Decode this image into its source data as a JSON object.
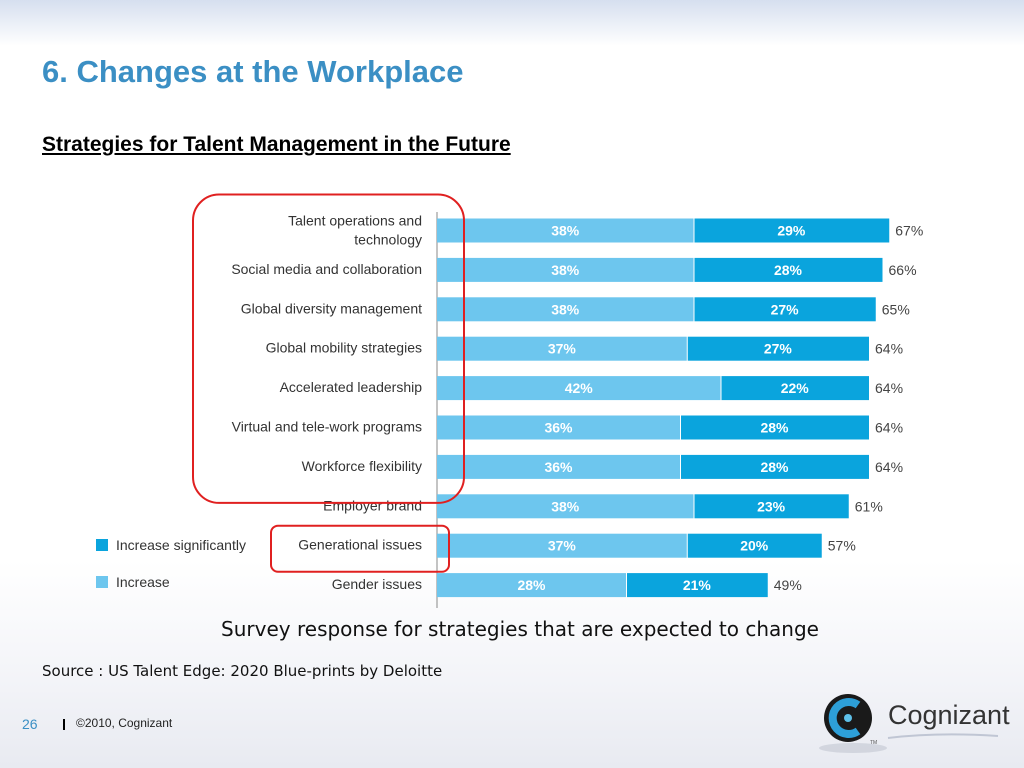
{
  "slide": {
    "title": "6. Changes at the Workplace",
    "subtitle": "Strategies for Talent Management in the Future",
    "caption": "Survey response for strategies that are expected to change",
    "source": "Source : US Talent Edge: 2020 Blue-prints by Deloitte",
    "page_number": "26",
    "copyright": "©2010, Cognizant",
    "logo_text": "Cognizant",
    "logo_tm": "TM"
  },
  "colors": {
    "title": "#3b8fc4",
    "increase": "#6dc6ee",
    "increase_significantly": "#0aa4dd",
    "highlight": "#e02020"
  },
  "chart_data": {
    "type": "bar",
    "orientation": "horizontal",
    "stacked": true,
    "categories": [
      "Talent operations and technology",
      "Social media and collaboration",
      "Global diversity management",
      "Global mobility strategies",
      "Accelerated leadership",
      "Virtual and tele-work programs",
      "Workforce flexibility",
      "Employer brand",
      "Generational issues",
      "Gender issues"
    ],
    "series": [
      {
        "name": "Increase",
        "color": "#6dc6ee",
        "values": [
          38,
          38,
          38,
          37,
          42,
          36,
          36,
          38,
          37,
          28
        ]
      },
      {
        "name": "Increase significantly",
        "color": "#0aa4dd",
        "values": [
          29,
          28,
          27,
          27,
          22,
          28,
          28,
          23,
          20,
          21
        ]
      }
    ],
    "totals": [
      67,
      66,
      65,
      64,
      64,
      64,
      64,
      61,
      57,
      49
    ],
    "value_suffix": "%",
    "legend": [
      "Increase significantly",
      "Increase"
    ],
    "legend_position": "bottom-left",
    "highlighted_categories": [
      "Talent operations and technology",
      "Social media and collaboration",
      "Global diversity management",
      "Global mobility strategies",
      "Accelerated leadership",
      "Virtual and tele-work programs",
      "Workforce flexibility",
      "Generational issues"
    ]
  }
}
